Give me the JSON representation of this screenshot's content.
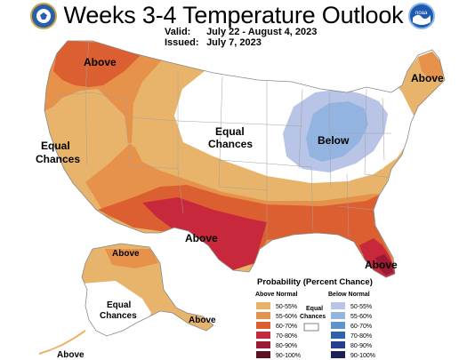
{
  "header": {
    "title": "Weeks 3-4 Temperature Outlook",
    "valid_label": "Valid:",
    "valid_value": "July 22 - August 4, 2023",
    "issued_label": "Issued:",
    "issued_value": "July 7, 2023"
  },
  "logos": {
    "left": "department-of-commerce-seal",
    "right": "noaa-logo"
  },
  "map": {
    "labels": {
      "nw_above": "Above",
      "west_equal_1": "Equal",
      "west_equal_2": "Chances",
      "central_equal_1": "Equal",
      "central_equal_2": "Chances",
      "midwest_below": "Below",
      "ne_above": "Above",
      "south_above": "Above",
      "fl_above": "Above",
      "ak_above": "Above",
      "ak_equal_1": "Equal",
      "ak_equal_2": "Chances",
      "ak_se_above": "Above",
      "ak_aleut_above": "Above"
    }
  },
  "legend": {
    "title": "Probability (Percent Chance)",
    "above_header": "Above Normal",
    "below_header": "Below Normal",
    "equal_label_1": "Equal",
    "equal_label_2": "Chances",
    "above_items": [
      {
        "label": "50-55%",
        "color": "#e8b46c"
      },
      {
        "label": "55-60%",
        "color": "#e6924b"
      },
      {
        "label": "60-70%",
        "color": "#dc5f31"
      },
      {
        "label": "70-80%",
        "color": "#c8283c"
      },
      {
        "label": "80-90%",
        "color": "#9a1b34"
      },
      {
        "label": "90-100%",
        "color": "#5e1020"
      }
    ],
    "below_items": [
      {
        "label": "50-55%",
        "color": "#b9c5e6"
      },
      {
        "label": "55-60%",
        "color": "#93b4e0"
      },
      {
        "label": "60-70%",
        "color": "#5f93cf"
      },
      {
        "label": "70-80%",
        "color": "#2f60ad"
      },
      {
        "label": "80-90%",
        "color": "#263f8c"
      },
      {
        "label": "90-100%",
        "color": "#1b1f5a"
      }
    ],
    "equal_color": "#ffffff"
  }
}
